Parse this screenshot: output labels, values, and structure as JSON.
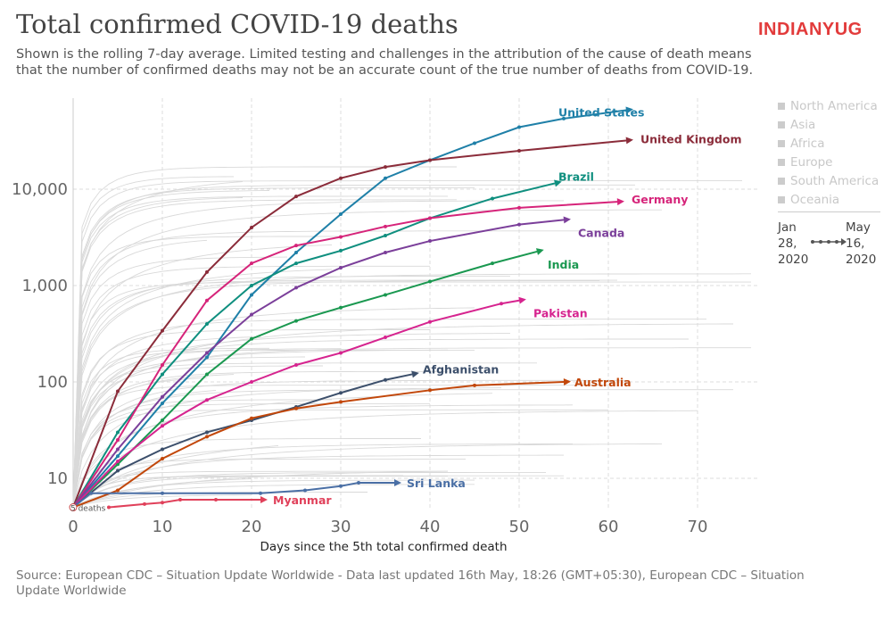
{
  "title": "Total confirmed COVID-19 deaths",
  "subtitle": "Shown is the rolling 7-day average. Limited testing and challenges in the attribution of the cause of death means that the number of confirmed deaths may not be an accurate count of the true number of deaths from COVID-19.",
  "logo": "INDIANYUG",
  "legend": {
    "regions": [
      "North America",
      "Asia",
      "Africa",
      "Europe",
      "South America",
      "Oceania"
    ],
    "start_date": "Jan 28, 2020",
    "end_date": "May 16, 2020"
  },
  "source": "Source: European CDC – Situation Update Worldwide - Data last updated 16th May, 18:26 (GMT+05:30), European CDC – Situation Update Worldwide",
  "chart_data": {
    "type": "line",
    "xlabel": "Days since the 5th total confirmed death",
    "ylabel": "",
    "x_scale": "linear",
    "y_scale": "log",
    "xlim": [
      0,
      77
    ],
    "ylim": [
      5,
      87000
    ],
    "x_ticks": [
      "0",
      "10",
      "20",
      "30",
      "40",
      "50",
      "60",
      "70"
    ],
    "y_ticks": [
      "10",
      "100",
      "1,000",
      "10,000"
    ],
    "origin_label": "5 deaths",
    "grid": true,
    "series": [
      {
        "name": "United States",
        "color": "#1f80a8",
        "points": [
          [
            0,
            5
          ],
          [
            5,
            17
          ],
          [
            10,
            60
          ],
          [
            15,
            180
          ],
          [
            20,
            800
          ],
          [
            25,
            2200
          ],
          [
            30,
            5500
          ],
          [
            35,
            13000
          ],
          [
            40,
            20000
          ],
          [
            45,
            30000
          ],
          [
            50,
            44000
          ],
          [
            55,
            54000
          ],
          [
            62,
            66000
          ]
        ]
      },
      {
        "name": "United Kingdom",
        "color": "#8b2c3a",
        "points": [
          [
            0,
            5
          ],
          [
            5,
            80
          ],
          [
            10,
            340
          ],
          [
            15,
            1380
          ],
          [
            20,
            4000
          ],
          [
            25,
            8400
          ],
          [
            30,
            13000
          ],
          [
            35,
            17000
          ],
          [
            40,
            20000
          ],
          [
            50,
            25000
          ],
          [
            62,
            32000
          ]
        ]
      },
      {
        "name": "Brazil",
        "color": "#0f8f7f",
        "points": [
          [
            0,
            5
          ],
          [
            5,
            30
          ],
          [
            10,
            120
          ],
          [
            15,
            400
          ],
          [
            20,
            1000
          ],
          [
            25,
            1700
          ],
          [
            30,
            2300
          ],
          [
            35,
            3300
          ],
          [
            40,
            5000
          ],
          [
            47,
            8000
          ],
          [
            54,
            11500
          ]
        ]
      },
      {
        "name": "Germany",
        "color": "#d6247a",
        "points": [
          [
            0,
            5
          ],
          [
            5,
            25
          ],
          [
            10,
            150
          ],
          [
            15,
            700
          ],
          [
            20,
            1700
          ],
          [
            25,
            2600
          ],
          [
            30,
            3200
          ],
          [
            35,
            4100
          ],
          [
            40,
            5000
          ],
          [
            50,
            6400
          ],
          [
            61,
            7400
          ]
        ]
      },
      {
        "name": "Canada",
        "color": "#7b3f9a",
        "points": [
          [
            0,
            5
          ],
          [
            5,
            20
          ],
          [
            10,
            70
          ],
          [
            15,
            200
          ],
          [
            20,
            500
          ],
          [
            25,
            950
          ],
          [
            30,
            1530
          ],
          [
            35,
            2200
          ],
          [
            40,
            2900
          ],
          [
            50,
            4300
          ],
          [
            55,
            4800
          ]
        ]
      },
      {
        "name": "India",
        "color": "#1a9850",
        "points": [
          [
            0,
            5
          ],
          [
            5,
            14
          ],
          [
            10,
            40
          ],
          [
            15,
            120
          ],
          [
            20,
            280
          ],
          [
            25,
            430
          ],
          [
            30,
            590
          ],
          [
            35,
            800
          ],
          [
            40,
            1100
          ],
          [
            47,
            1700
          ],
          [
            52,
            2250
          ]
        ]
      },
      {
        "name": "Pakistan",
        "color": "#d6248f",
        "points": [
          [
            0,
            5
          ],
          [
            5,
            15
          ],
          [
            10,
            35
          ],
          [
            15,
            65
          ],
          [
            20,
            100
          ],
          [
            25,
            150
          ],
          [
            30,
            200
          ],
          [
            35,
            290
          ],
          [
            40,
            420
          ],
          [
            48,
            650
          ],
          [
            50,
            700
          ]
        ]
      },
      {
        "name": "Afghanistan",
        "color": "#3c4f6b",
        "points": [
          [
            0,
            5
          ],
          [
            5,
            12
          ],
          [
            10,
            20
          ],
          [
            15,
            30
          ],
          [
            20,
            40
          ],
          [
            25,
            55
          ],
          [
            30,
            77
          ],
          [
            35,
            105
          ],
          [
            38,
            120
          ]
        ]
      },
      {
        "name": "Australia",
        "color": "#c2470a",
        "points": [
          [
            0,
            5
          ],
          [
            5,
            7.5
          ],
          [
            10,
            16
          ],
          [
            15,
            27
          ],
          [
            20,
            42
          ],
          [
            25,
            53
          ],
          [
            30,
            62
          ],
          [
            40,
            82
          ],
          [
            45,
            92
          ],
          [
            55,
            100
          ]
        ]
      },
      {
        "name": "Sri Lanka",
        "color": "#4a6fa5",
        "points": [
          [
            0,
            5
          ],
          [
            2,
            7
          ],
          [
            10,
            7
          ],
          [
            21,
            7
          ],
          [
            26,
            7.5
          ],
          [
            30,
            8.3
          ],
          [
            32,
            9
          ],
          [
            36,
            9
          ]
        ]
      },
      {
        "name": "Myanmar",
        "color": "#e0405a",
        "points": [
          [
            4,
            5
          ],
          [
            8,
            5.4
          ],
          [
            10,
            5.6
          ],
          [
            12,
            6
          ],
          [
            16,
            6
          ],
          [
            21,
            6
          ]
        ]
      }
    ]
  }
}
